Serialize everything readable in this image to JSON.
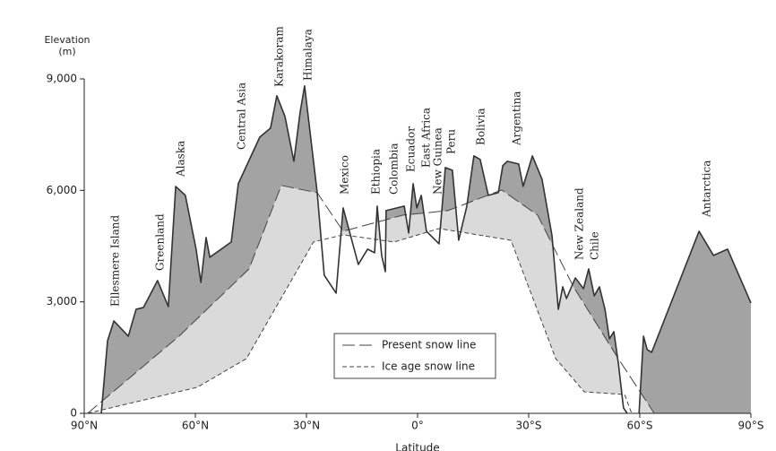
{
  "chart_data": {
    "type": "area",
    "x_label": "Latitude",
    "y_label": "Elevation (m)",
    "xlim": [
      90,
      -90
    ],
    "ylim": [
      0,
      9000
    ],
    "xticks": [
      {
        "value": 90,
        "label": "90°N"
      },
      {
        "value": 60,
        "label": "60°N"
      },
      {
        "value": 30,
        "label": "30°N"
      },
      {
        "value": 0,
        "label": "0°"
      },
      {
        "value": -30,
        "label": "30°S"
      },
      {
        "value": -60,
        "label": "60°S"
      },
      {
        "value": -90,
        "label": "90°S"
      }
    ],
    "yticks": [
      {
        "value": 0,
        "label": "0"
      },
      {
        "value": 3000,
        "label": "3,000"
      },
      {
        "value": 6000,
        "label": "6,000"
      },
      {
        "value": 9000,
        "label": "9,000"
      }
    ],
    "profile": {
      "color": "#333333",
      "x": [
        85.4,
        83.7,
        82.0,
        78.1,
        76.0,
        74.0,
        70.2,
        67.3,
        65.3,
        62.7,
        59.8,
        58.5,
        57.1,
        56.1,
        50.3,
        48.4,
        42.6,
        39.7,
        38.0,
        35.8,
        33.4,
        31.7,
        30.5,
        27.1,
        25.2,
        22.0,
        20.1,
        16.0,
        13.5,
        11.6,
        10.9,
        9.7,
        8.7,
        8.5,
        3.6,
        2.4,
        1.2,
        0.2,
        -1.0,
        -2.4,
        -5.8,
        -7.5,
        -9.4,
        -11.1,
        -13.3,
        -15.2,
        -16.9,
        -19.1,
        -21.8,
        -23.0,
        -24.2,
        -27.3,
        -28.5,
        -31.0,
        -33.6,
        -36.3,
        -38.0,
        -39.2,
        -40.2,
        -42.6,
        -44.8,
        -46.2,
        -47.7,
        -49.1,
        -50.6,
        -51.8,
        -53.0,
        -54.2,
        -55.6,
        -56.6,
        null,
        -59.8,
        -61.0,
        -62.0,
        -63.2,
        -76.0,
        -79.9,
        -83.7,
        -90.0
      ],
      "values": [
        0,
        1955,
        2486,
        2076,
        2800,
        2849,
        3573,
        2873,
        6107,
        5866,
        4418,
        3524,
        4731,
        4200,
        4611,
        6180,
        7435,
        7677,
        8546,
        7990,
        6783,
        8111,
        8811,
        5938,
        3718,
        3235,
        5528,
        4007,
        4418,
        4321,
        5576,
        4249,
        3814,
        5456,
        5576,
        4852,
        6180,
        5528,
        5866,
        4900,
        4562,
        6614,
        6542,
        4659,
        5576,
        6928,
        6832,
        5866,
        5938,
        6663,
        6783,
        6711,
        6107,
        6928,
        6300,
        4780,
        2800,
        3404,
        3090,
        3645,
        3355,
        3887,
        3162,
        3404,
        2800,
        2004,
        2197,
        1352,
        145,
        0,
        null,
        0,
        2076,
        1714,
        1641,
        4900,
        4249,
        4418,
        2969
      ]
    },
    "series": [
      {
        "name": "Present snow line",
        "color": "#444444",
        "fill": "#dadada",
        "dash": "long",
        "x": [
          89.1,
          64.4,
          45.5,
          36.8,
          27.1,
          20.1,
          3.9,
          -8.2,
          -22.7,
          -32.4,
          -42.1,
          -54.2,
          -63.9
        ],
        "values": [
          0,
          2076,
          3887,
          6132,
          5938,
          4900,
          5335,
          5456,
          6011,
          5335,
          3404,
          1472,
          0
        ]
      },
      {
        "name": "Ice age snow line",
        "color": "#444444",
        "fill": "#ffffff",
        "dash": "short",
        "x": [
          89.1,
          59.5,
          46.2,
          28.1,
          20.1,
          6.3,
          -5.8,
          -25.2,
          -37.3,
          -45.0,
          -55.9,
          -57.8
        ],
        "values": [
          0,
          700,
          1473,
          4611,
          4804,
          4611,
          4973,
          4659,
          1473,
          579,
          507,
          0
        ]
      }
    ],
    "upper_fill": "#a3a3a3",
    "annotations": [
      "Ellesmere Island",
      "Greenland",
      "Alaska",
      "Central Asia",
      "Karakoram",
      "Himalaya",
      "Mexico",
      "Ethiopia",
      "Colombia",
      "Ecuador",
      "East Africa",
      "New Guinea",
      "Peru",
      "Bolivia",
      "Argentina",
      "New Zealand",
      "Chile",
      "Antarctica"
    ]
  }
}
